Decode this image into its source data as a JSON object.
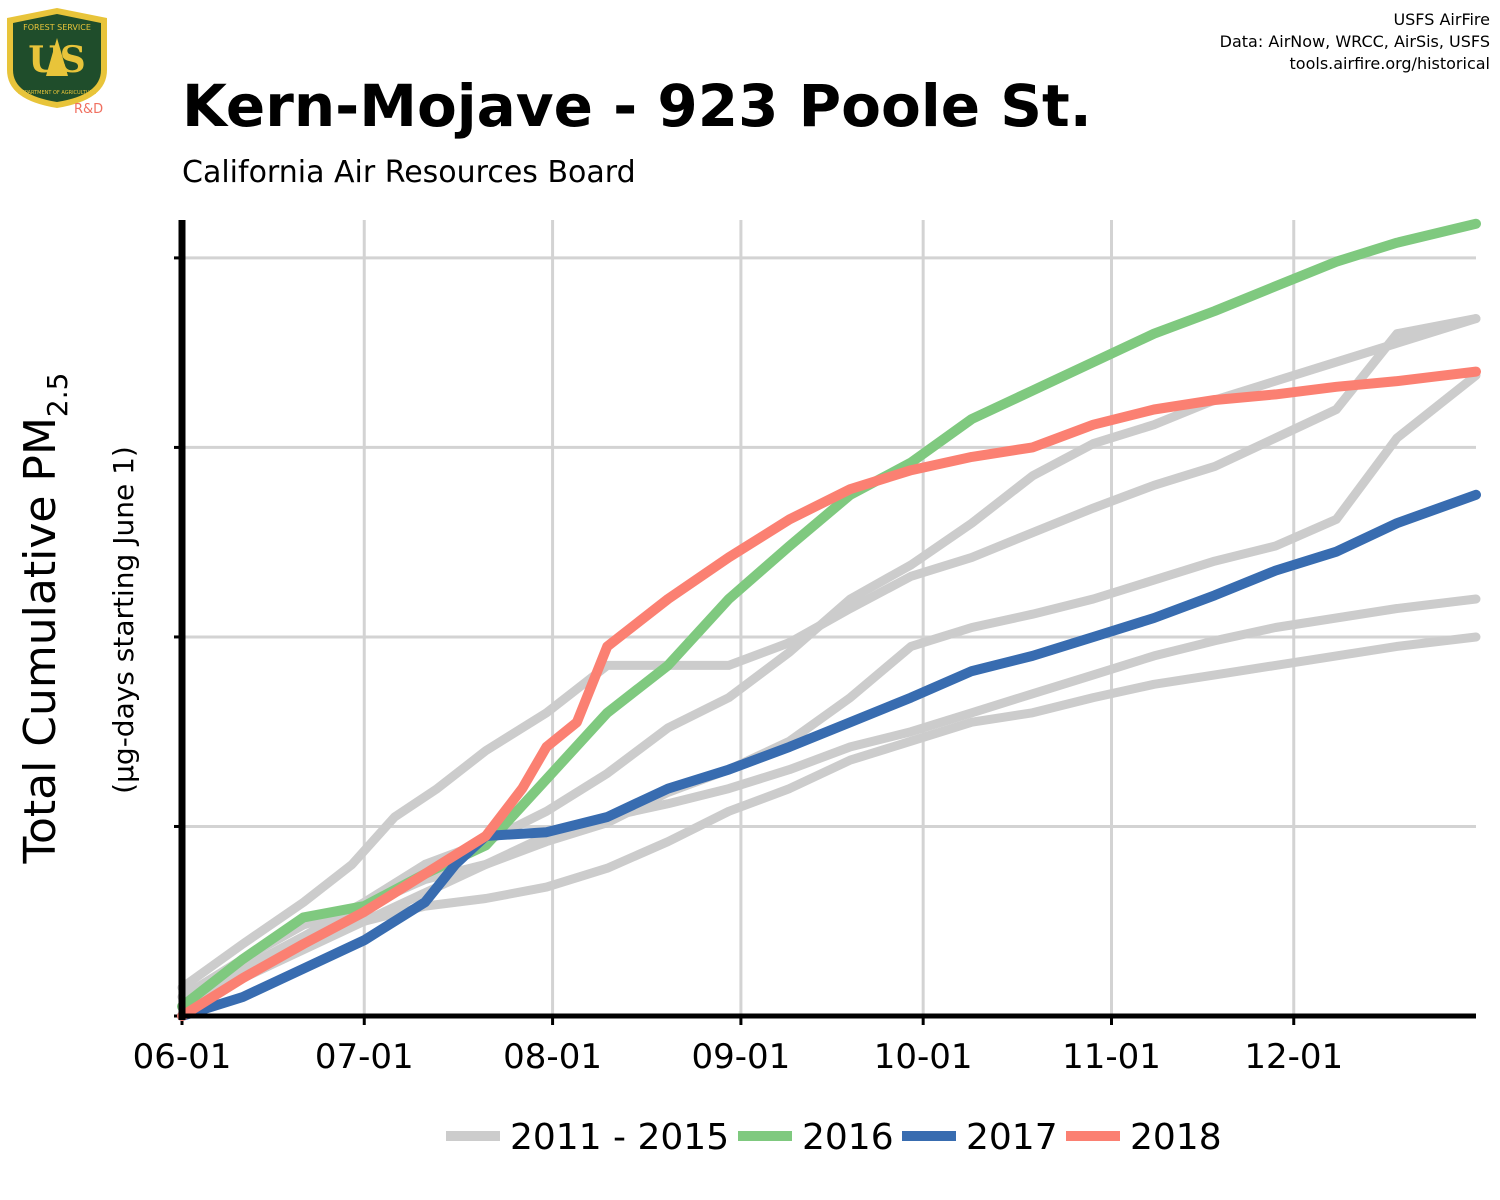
{
  "header": {
    "logo_text": "US",
    "logo_ring_text": "FOREST SERVICE",
    "logo_ring_bottom": "DEPARTMENT OF AGRICULTURE",
    "logo_sublabel": "R&D",
    "credits": [
      "USFS AirFire",
      "Data: AirNow, WRCC, AirSis, USFS",
      "tools.airfire.org/historical"
    ]
  },
  "colors": {
    "background_series": "#cccccc",
    "s2016": "#7fc97f",
    "s2017": "#386cb0",
    "s2018": "#fb8072",
    "grid": "#d3d3d3",
    "axis": "#000000",
    "logo_green": "#1f4d2b",
    "logo_gold": "#e8c43a",
    "logo_sublabel": "#f07060"
  },
  "chart_data": {
    "type": "line",
    "title": "Kern-Mojave - 923 Poole St.",
    "subtitle": "California Air Resources Board",
    "ylabel": "Total Cumulative PM",
    "ylabel_sub": "2.5",
    "ylabel2": "(µg-days starting June 1)",
    "xlabel": "",
    "x_tick_labels": [
      "06-01",
      "07-01",
      "08-01",
      "09-01",
      "10-01",
      "11-01",
      "12-01"
    ],
    "x_tick_days": [
      0,
      30,
      61,
      92,
      122,
      153,
      183
    ],
    "xlim": [
      0,
      213
    ],
    "ylim": [
      0,
      4.2
    ],
    "y_ticks": [
      0,
      1,
      2,
      3,
      4
    ],
    "y_tick_labels_shown": false,
    "grid": true,
    "legend_position": "bottom",
    "legend": [
      {
        "label": "2011 - 2015",
        "color_key": "background_series"
      },
      {
        "label": "2016",
        "color_key": "s2016"
      },
      {
        "label": "2017",
        "color_key": "s2017"
      },
      {
        "label": "2018",
        "color_key": "s2018"
      }
    ],
    "background_series": [
      {
        "points": [
          [
            0,
            0.15
          ],
          [
            10,
            0.38
          ],
          [
            20,
            0.6
          ],
          [
            28,
            0.8
          ],
          [
            35,
            1.05
          ],
          [
            42,
            1.2
          ],
          [
            50,
            1.4
          ],
          [
            60,
            1.6
          ],
          [
            70,
            1.85
          ],
          [
            80,
            1.85
          ],
          [
            90,
            1.85
          ],
          [
            100,
            1.97
          ],
          [
            110,
            2.15
          ],
          [
            120,
            2.32
          ],
          [
            130,
            2.42
          ],
          [
            140,
            2.55
          ],
          [
            150,
            2.68
          ],
          [
            160,
            2.8
          ],
          [
            170,
            2.9
          ],
          [
            180,
            3.05
          ],
          [
            190,
            3.2
          ],
          [
            200,
            3.6
          ],
          [
            213,
            3.68
          ]
        ]
      },
      {
        "points": [
          [
            0,
            0.1
          ],
          [
            10,
            0.3
          ],
          [
            20,
            0.48
          ],
          [
            30,
            0.58
          ],
          [
            40,
            0.72
          ],
          [
            50,
            0.8
          ],
          [
            60,
            0.92
          ],
          [
            70,
            1.02
          ],
          [
            80,
            1.18
          ],
          [
            90,
            1.3
          ],
          [
            100,
            1.45
          ],
          [
            110,
            1.68
          ],
          [
            120,
            1.95
          ],
          [
            130,
            2.05
          ],
          [
            140,
            2.12
          ],
          [
            150,
            2.2
          ],
          [
            160,
            2.3
          ],
          [
            170,
            2.4
          ],
          [
            180,
            2.48
          ],
          [
            190,
            2.62
          ],
          [
            200,
            3.05
          ],
          [
            213,
            3.38
          ]
        ]
      },
      {
        "points": [
          [
            0,
            0.05
          ],
          [
            10,
            0.25
          ],
          [
            20,
            0.42
          ],
          [
            30,
            0.6
          ],
          [
            40,
            0.8
          ],
          [
            50,
            0.92
          ],
          [
            60,
            1.08
          ],
          [
            70,
            1.28
          ],
          [
            80,
            1.52
          ],
          [
            90,
            1.68
          ],
          [
            100,
            1.92
          ],
          [
            110,
            2.2
          ],
          [
            120,
            2.38
          ],
          [
            130,
            2.6
          ],
          [
            140,
            2.85
          ],
          [
            150,
            3.02
          ],
          [
            160,
            3.12
          ],
          [
            170,
            3.25
          ],
          [
            180,
            3.35
          ],
          [
            190,
            3.45
          ],
          [
            200,
            3.55
          ],
          [
            213,
            3.68
          ]
        ]
      },
      {
        "points": [
          [
            0,
            0.05
          ],
          [
            10,
            0.22
          ],
          [
            20,
            0.38
          ],
          [
            30,
            0.5
          ],
          [
            40,
            0.58
          ],
          [
            50,
            0.62
          ],
          [
            60,
            0.68
          ],
          [
            70,
            0.78
          ],
          [
            80,
            0.92
          ],
          [
            90,
            1.08
          ],
          [
            100,
            1.2
          ],
          [
            110,
            1.35
          ],
          [
            120,
            1.45
          ],
          [
            130,
            1.55
          ],
          [
            140,
            1.6
          ],
          [
            150,
            1.68
          ],
          [
            160,
            1.75
          ],
          [
            170,
            1.8
          ],
          [
            180,
            1.85
          ],
          [
            190,
            1.9
          ],
          [
            200,
            1.95
          ],
          [
            213,
            2.0
          ]
        ]
      },
      {
        "points": [
          [
            0,
            0.05
          ],
          [
            10,
            0.2
          ],
          [
            20,
            0.35
          ],
          [
            30,
            0.5
          ],
          [
            40,
            0.65
          ],
          [
            50,
            0.8
          ],
          [
            60,
            0.95
          ],
          [
            70,
            1.05
          ],
          [
            80,
            1.12
          ],
          [
            90,
            1.2
          ],
          [
            100,
            1.3
          ],
          [
            110,
            1.42
          ],
          [
            120,
            1.5
          ],
          [
            130,
            1.6
          ],
          [
            140,
            1.7
          ],
          [
            150,
            1.8
          ],
          [
            160,
            1.9
          ],
          [
            170,
            1.98
          ],
          [
            180,
            2.05
          ],
          [
            190,
            2.1
          ],
          [
            200,
            2.15
          ],
          [
            213,
            2.2
          ]
        ]
      }
    ],
    "series": [
      {
        "name": "2016",
        "color_key": "s2016",
        "points": [
          [
            0,
            0.05
          ],
          [
            10,
            0.3
          ],
          [
            20,
            0.52
          ],
          [
            30,
            0.58
          ],
          [
            40,
            0.75
          ],
          [
            50,
            0.9
          ],
          [
            60,
            1.25
          ],
          [
            70,
            1.6
          ],
          [
            80,
            1.85
          ],
          [
            90,
            2.2
          ],
          [
            100,
            2.48
          ],
          [
            110,
            2.75
          ],
          [
            120,
            2.92
          ],
          [
            130,
            3.15
          ],
          [
            140,
            3.3
          ],
          [
            150,
            3.45
          ],
          [
            160,
            3.6
          ],
          [
            170,
            3.72
          ],
          [
            180,
            3.85
          ],
          [
            190,
            3.98
          ],
          [
            200,
            4.08
          ],
          [
            213,
            4.18
          ]
        ]
      },
      {
        "name": "2017",
        "color_key": "s2017",
        "points": [
          [
            0,
            0.0
          ],
          [
            10,
            0.1
          ],
          [
            20,
            0.25
          ],
          [
            30,
            0.4
          ],
          [
            40,
            0.6
          ],
          [
            45,
            0.8
          ],
          [
            50,
            0.95
          ],
          [
            60,
            0.97
          ],
          [
            70,
            1.05
          ],
          [
            80,
            1.2
          ],
          [
            90,
            1.3
          ],
          [
            100,
            1.42
          ],
          [
            110,
            1.55
          ],
          [
            120,
            1.68
          ],
          [
            130,
            1.82
          ],
          [
            140,
            1.9
          ],
          [
            150,
            2.0
          ],
          [
            160,
            2.1
          ],
          [
            170,
            2.22
          ],
          [
            180,
            2.35
          ],
          [
            190,
            2.45
          ],
          [
            200,
            2.6
          ],
          [
            213,
            2.75
          ]
        ]
      },
      {
        "name": "2018",
        "color_key": "s2018",
        "points": [
          [
            0,
            0.0
          ],
          [
            10,
            0.2
          ],
          [
            20,
            0.38
          ],
          [
            30,
            0.55
          ],
          [
            40,
            0.75
          ],
          [
            50,
            0.95
          ],
          [
            56,
            1.2
          ],
          [
            60,
            1.42
          ],
          [
            65,
            1.55
          ],
          [
            70,
            1.95
          ],
          [
            80,
            2.2
          ],
          [
            90,
            2.42
          ],
          [
            100,
            2.62
          ],
          [
            110,
            2.78
          ],
          [
            120,
            2.88
          ],
          [
            130,
            2.95
          ],
          [
            140,
            3.0
          ],
          [
            150,
            3.12
          ],
          [
            160,
            3.2
          ],
          [
            170,
            3.25
          ],
          [
            180,
            3.28
          ],
          [
            190,
            3.32
          ],
          [
            200,
            3.35
          ],
          [
            213,
            3.4
          ]
        ]
      }
    ]
  }
}
